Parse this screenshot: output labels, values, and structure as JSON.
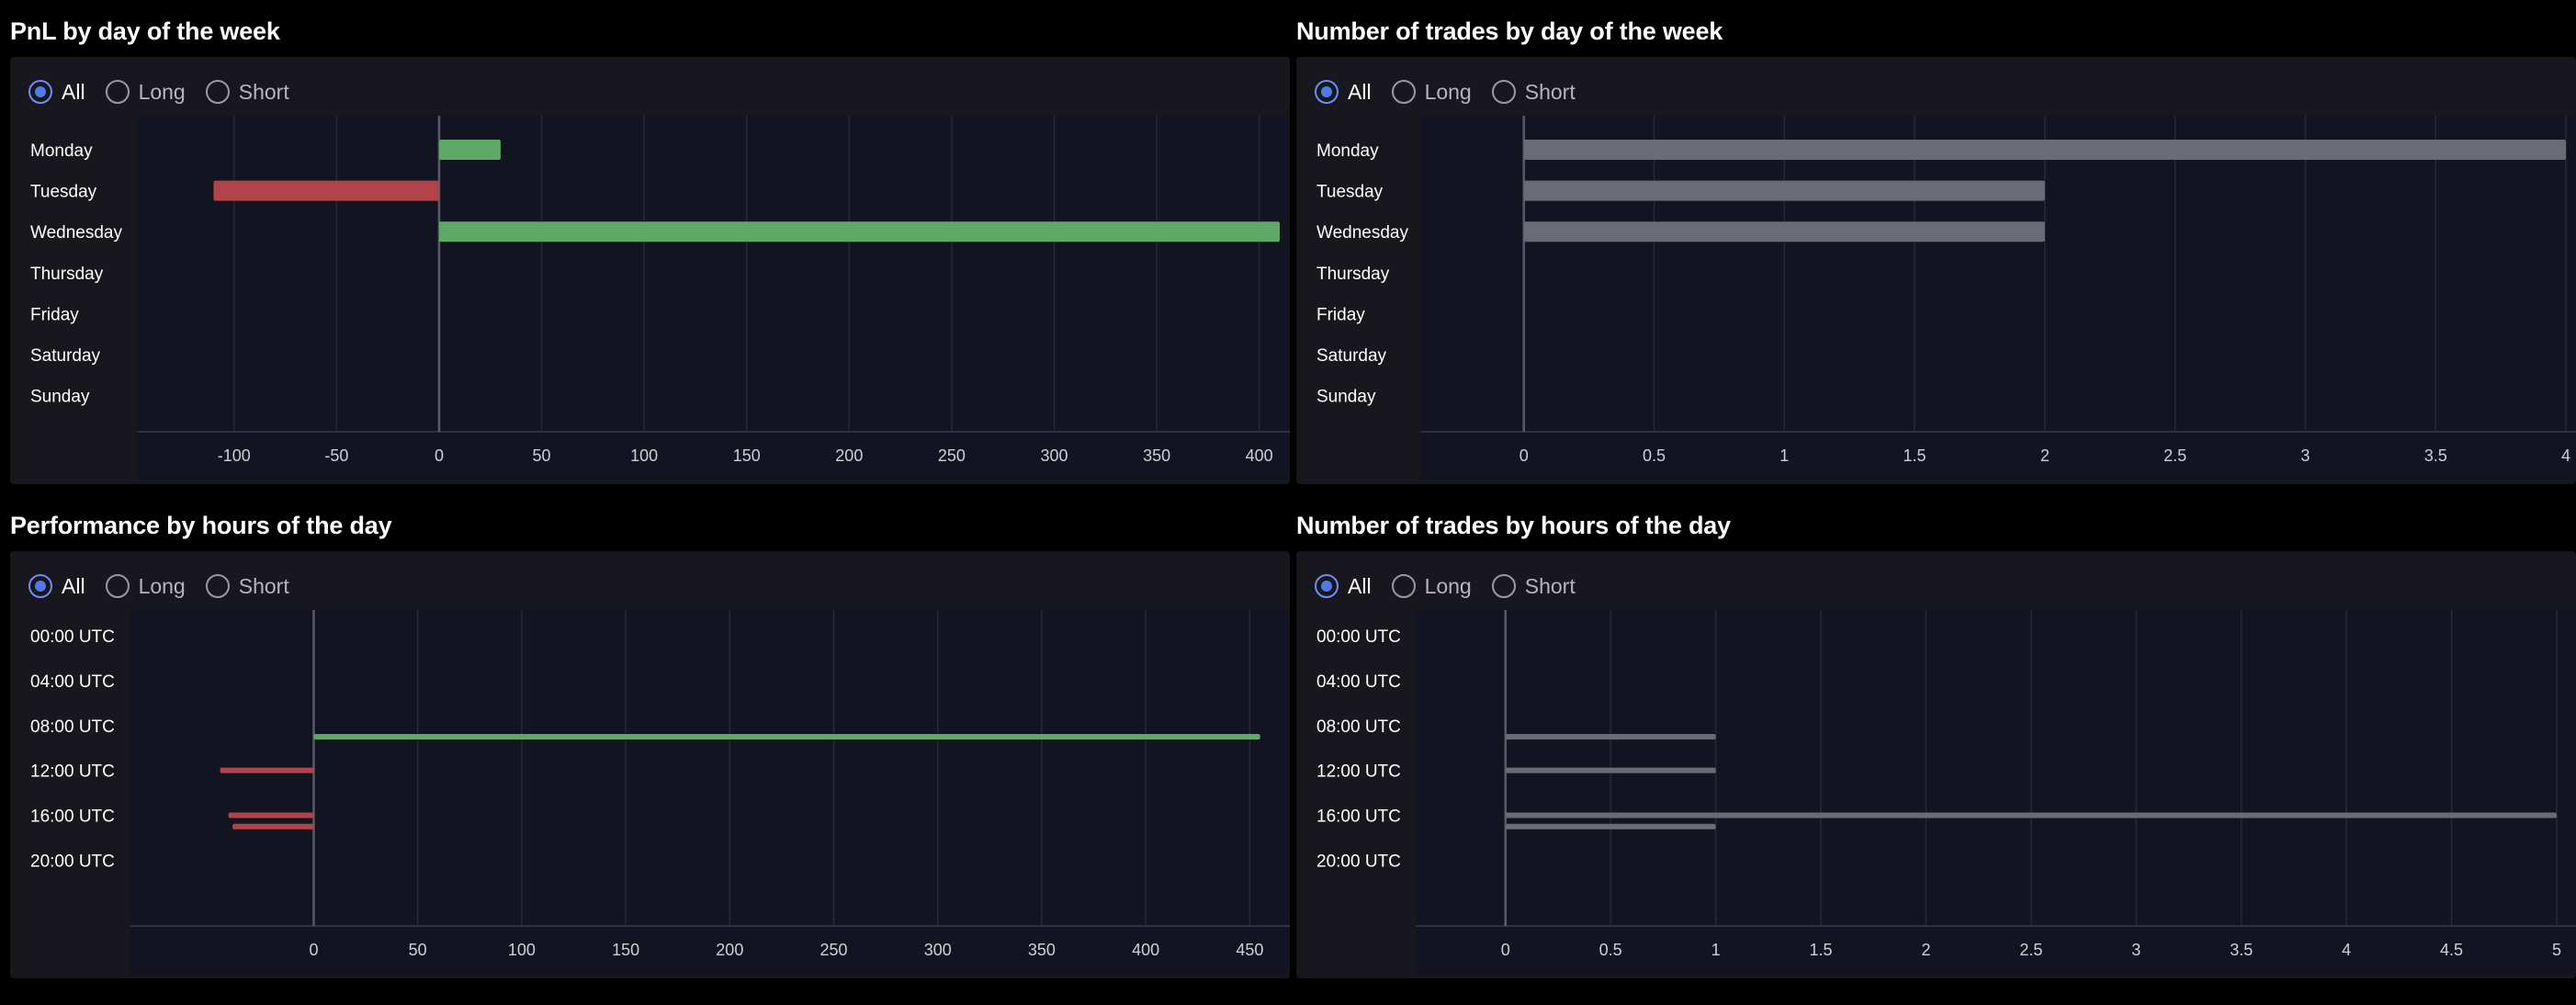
{
  "filters": [
    "All",
    "Long",
    "Short"
  ],
  "selected_filter": "All",
  "colors": {
    "positive": "#5fa866",
    "negative": "#b3434b",
    "count": "#6b6b75",
    "zero_line": "#5a5a66",
    "grid": "#262833",
    "plot_bg": "#121521"
  },
  "chart_data": [
    {
      "type": "bar",
      "title": "PnL by day of the week",
      "orientation": "horizontal",
      "categories": [
        "Monday",
        "Tuesday",
        "Wednesday",
        "Thursday",
        "Friday",
        "Saturday",
        "Sunday"
      ],
      "values": [
        30,
        -110,
        410,
        0,
        0,
        0,
        0
      ],
      "xlim": [
        -125,
        410
      ],
      "xticks": [
        -100,
        -50,
        0,
        50,
        100,
        150,
        200,
        250,
        300,
        350,
        400
      ],
      "grid": true
    },
    {
      "type": "bar",
      "title": "Number of trades by day of the week",
      "orientation": "horizontal",
      "categories": [
        "Monday",
        "Tuesday",
        "Wednesday",
        "Thursday",
        "Friday",
        "Saturday",
        "Sunday"
      ],
      "values": [
        4,
        2,
        2,
        0,
        0,
        0,
        0
      ],
      "xlim": [
        -0.2,
        4
      ],
      "xticks": [
        0,
        0.5,
        1,
        1.5,
        2,
        2.5,
        3,
        3.5,
        4
      ],
      "grid": true
    },
    {
      "type": "bar",
      "title": "Performance by hours of the day",
      "orientation": "horizontal",
      "categories": [
        "00:00 UTC",
        "04:00 UTC",
        "08:00 UTC",
        "12:00 UTC",
        "16:00 UTC",
        "20:00 UTC"
      ],
      "y_ticks_hours": [
        0,
        4,
        8,
        12,
        16,
        20
      ],
      "points": [
        {
          "hour": 9,
          "value": 455
        },
        {
          "hour": 12,
          "value": -45
        },
        {
          "hour": 16,
          "value": -41
        },
        {
          "hour": 17,
          "value": -39
        }
      ],
      "xlim": [
        -70,
        460
      ],
      "xticks": [
        0,
        50,
        100,
        150,
        200,
        250,
        300,
        350,
        400,
        450
      ],
      "grid": true
    },
    {
      "type": "bar",
      "title": "Number of trades by hours of the day",
      "orientation": "horizontal",
      "categories": [
        "00:00 UTC",
        "04:00 UTC",
        "08:00 UTC",
        "12:00 UTC",
        "16:00 UTC",
        "20:00 UTC"
      ],
      "y_ticks_hours": [
        0,
        4,
        8,
        12,
        16,
        20
      ],
      "points": [
        {
          "hour": 9,
          "value": 1
        },
        {
          "hour": 12,
          "value": 1
        },
        {
          "hour": 16,
          "value": 5
        },
        {
          "hour": 17,
          "value": 1
        }
      ],
      "xlim": [
        -0.2,
        5
      ],
      "xticks": [
        0,
        0.5,
        1,
        1.5,
        2,
        2.5,
        3,
        3.5,
        4,
        4.5,
        5
      ],
      "grid": true
    }
  ]
}
